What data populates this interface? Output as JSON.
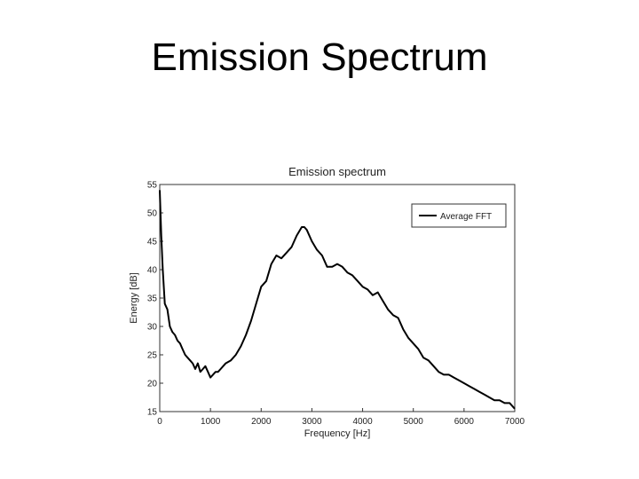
{
  "slide": {
    "title": "Emission Spectrum"
  },
  "chart_data": {
    "type": "line",
    "title": "Emission spectrum",
    "xlabel": "Frequency [Hz]",
    "ylabel": "Energy [dB]",
    "xlim": [
      0,
      7000
    ],
    "ylim": [
      15,
      55
    ],
    "xticks": [
      0,
      1000,
      2000,
      3000,
      4000,
      5000,
      6000,
      7000
    ],
    "yticks": [
      15,
      20,
      25,
      30,
      35,
      40,
      45,
      50,
      55
    ],
    "grid": false,
    "legend": "top-right",
    "series": [
      {
        "name": "Average FFT",
        "color": "#000000",
        "x": [
          0,
          30,
          60,
          100,
          150,
          200,
          250,
          300,
          350,
          400,
          450,
          500,
          550,
          600,
          650,
          700,
          750,
          800,
          850,
          900,
          950,
          1000,
          1050,
          1100,
          1150,
          1200,
          1300,
          1400,
          1500,
          1600,
          1700,
          1800,
          1900,
          2000,
          2100,
          2200,
          2300,
          2400,
          2500,
          2600,
          2700,
          2800,
          2850,
          2900,
          3000,
          3100,
          3200,
          3300,
          3400,
          3500,
          3600,
          3700,
          3800,
          3900,
          4000,
          4100,
          4200,
          4300,
          4400,
          4500,
          4600,
          4700,
          4800,
          4900,
          5000,
          5100,
          5200,
          5300,
          5400,
          5500,
          5600,
          5700,
          5800,
          5900,
          6000,
          6100,
          6200,
          6300,
          6400,
          6500,
          6600,
          6700,
          6800,
          6900,
          7000
        ],
        "y": [
          54,
          46,
          40,
          34,
          33,
          30,
          29,
          28.5,
          27.5,
          27,
          26,
          25,
          24.5,
          24,
          23.5,
          22.5,
          23.5,
          22,
          22.5,
          23,
          22,
          21,
          21.5,
          22,
          22,
          22.5,
          23.5,
          24,
          25,
          26.5,
          28.5,
          31,
          34,
          37,
          38,
          41,
          42.5,
          42,
          43,
          44,
          46,
          47.5,
          47.5,
          47,
          45,
          43.5,
          42.5,
          40.5,
          40.5,
          41,
          40.5,
          39.5,
          39,
          38,
          37,
          36.5,
          35.5,
          36,
          34.5,
          33,
          32,
          31.5,
          29.5,
          28,
          27,
          26,
          24.5,
          24,
          23,
          22,
          21.5,
          21.5,
          21,
          20.5,
          20,
          19.5,
          19,
          18.5,
          18,
          17.5,
          17,
          17,
          16.5,
          16.5,
          15.5
        ]
      }
    ]
  }
}
